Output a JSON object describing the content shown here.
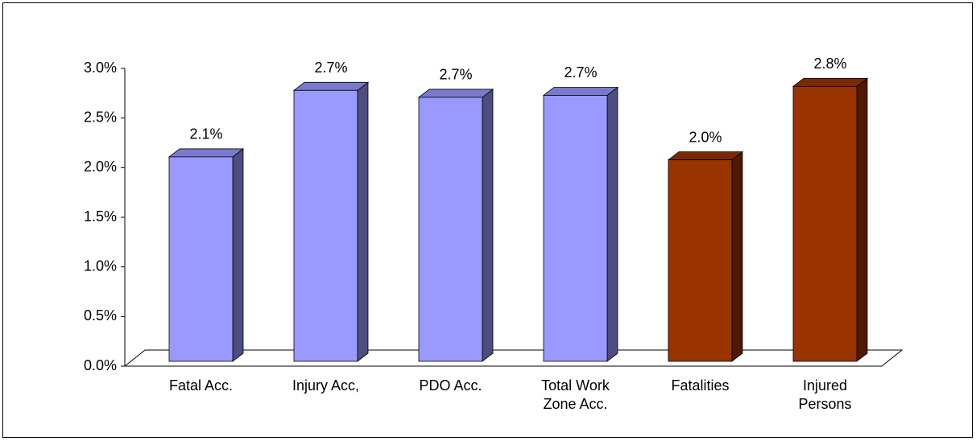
{
  "chart_data": {
    "type": "bar3d",
    "categories": [
      "Fatal Acc.",
      "Injury Acc,",
      "PDO Acc.",
      "Total Work\nZone Acc.",
      "Fatalities",
      "Injured\nPersons"
    ],
    "values": [
      2.06,
      2.73,
      2.66,
      2.68,
      2.03,
      2.77
    ],
    "value_labels": [
      "2.1%",
      "2.7%",
      "2.7%",
      "2.7%",
      "2.0%",
      "2.8%"
    ],
    "colors": [
      "#9999ff",
      "#9999ff",
      "#9999ff",
      "#9999ff",
      "#993300",
      "#993300"
    ],
    "ylim": [
      0,
      3
    ],
    "yticks": [
      {
        "value": 0,
        "label": "0.0%"
      },
      {
        "value": 0.5,
        "label": "0.5%"
      },
      {
        "value": 1,
        "label": "1.0%"
      },
      {
        "value": 1.5,
        "label": "1.5%"
      },
      {
        "value": 2,
        "label": "2.0%"
      },
      {
        "value": 2.5,
        "label": "2.5%"
      },
      {
        "value": 3,
        "label": "3.0%"
      }
    ],
    "grid": false
  }
}
